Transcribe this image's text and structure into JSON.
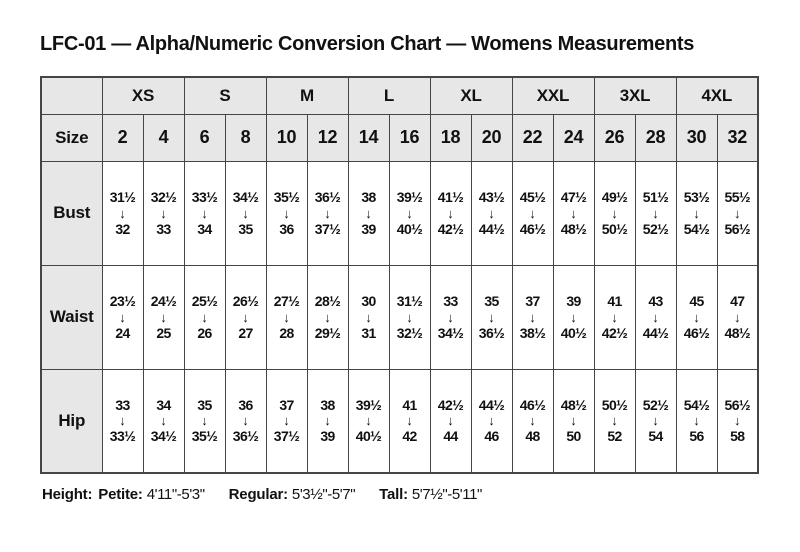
{
  "title": "LFC-01 — Alpha/Numeric Conversion Chart — Womens Measurements",
  "colors": {
    "header_fill": "#e7e7e7",
    "border": "#454545",
    "text": "#111111"
  },
  "chart_data": {
    "type": "table",
    "title": "LFC-01 — Alpha/Numeric Conversion Chart — Womens Measurements",
    "corner_label": "",
    "size_row_label": "Size",
    "arrow_icon": "↓",
    "alpha_sizes": [
      "XS",
      "S",
      "M",
      "L",
      "XL",
      "XXL",
      "3XL",
      "4XL"
    ],
    "numeric_sizes": [
      "2",
      "4",
      "6",
      "8",
      "10",
      "12",
      "14",
      "16",
      "18",
      "20",
      "22",
      "24",
      "26",
      "28",
      "30",
      "32"
    ],
    "measurement_rows": [
      {
        "label": "Bust",
        "cells": [
          {
            "from": "31½",
            "to": "32"
          },
          {
            "from": "32½",
            "to": "33"
          },
          {
            "from": "33½",
            "to": "34"
          },
          {
            "from": "34½",
            "to": "35"
          },
          {
            "from": "35½",
            "to": "36"
          },
          {
            "from": "36½",
            "to": "37½"
          },
          {
            "from": "38",
            "to": "39"
          },
          {
            "from": "39½",
            "to": "40½"
          },
          {
            "from": "41½",
            "to": "42½"
          },
          {
            "from": "43½",
            "to": "44½"
          },
          {
            "from": "45½",
            "to": "46½"
          },
          {
            "from": "47½",
            "to": "48½"
          },
          {
            "from": "49½",
            "to": "50½"
          },
          {
            "from": "51½",
            "to": "52½"
          },
          {
            "from": "53½",
            "to": "54½"
          },
          {
            "from": "55½",
            "to": "56½"
          }
        ]
      },
      {
        "label": "Waist",
        "cells": [
          {
            "from": "23½",
            "to": "24"
          },
          {
            "from": "24½",
            "to": "25"
          },
          {
            "from": "25½",
            "to": "26"
          },
          {
            "from": "26½",
            "to": "27"
          },
          {
            "from": "27½",
            "to": "28"
          },
          {
            "from": "28½",
            "to": "29½"
          },
          {
            "from": "30",
            "to": "31"
          },
          {
            "from": "31½",
            "to": "32½"
          },
          {
            "from": "33",
            "to": "34½"
          },
          {
            "from": "35",
            "to": "36½"
          },
          {
            "from": "37",
            "to": "38½"
          },
          {
            "from": "39",
            "to": "40½"
          },
          {
            "from": "41",
            "to": "42½"
          },
          {
            "from": "43",
            "to": "44½"
          },
          {
            "from": "45",
            "to": "46½"
          },
          {
            "from": "47",
            "to": "48½"
          }
        ]
      },
      {
        "label": "Hip",
        "cells": [
          {
            "from": "33",
            "to": "33½"
          },
          {
            "from": "34",
            "to": "34½"
          },
          {
            "from": "35",
            "to": "35½"
          },
          {
            "from": "36",
            "to": "36½"
          },
          {
            "from": "37",
            "to": "37½"
          },
          {
            "from": "38",
            "to": "39"
          },
          {
            "from": "39½",
            "to": "40½"
          },
          {
            "from": "41",
            "to": "42"
          },
          {
            "from": "42½",
            "to": "44"
          },
          {
            "from": "44½",
            "to": "46"
          },
          {
            "from": "46½",
            "to": "48"
          },
          {
            "from": "48½",
            "to": "50"
          },
          {
            "from": "50½",
            "to": "52"
          },
          {
            "from": "52½",
            "to": "54"
          },
          {
            "from": "54½",
            "to": "56"
          },
          {
            "from": "56½",
            "to": "58"
          }
        ]
      }
    ]
  },
  "footer": {
    "height_label": "Height:",
    "segments": [
      {
        "label": "Petite:",
        "value": "4'11\"-5'3\""
      },
      {
        "label": "Regular:",
        "value": "5'3½\"-5'7\""
      },
      {
        "label": "Tall:",
        "value": "5'7½\"-5'11\""
      }
    ]
  }
}
